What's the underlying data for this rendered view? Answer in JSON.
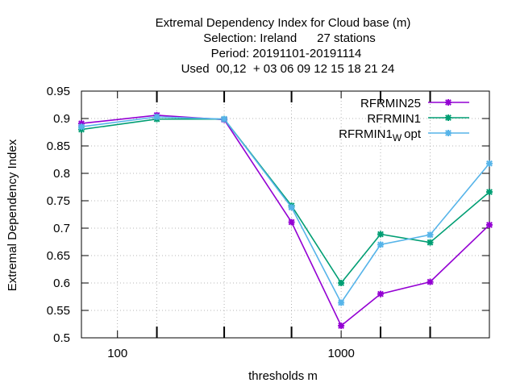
{
  "chart_data": {
    "type": "line",
    "title_lines": [
      "Extremal Dependency Index  for Cloud base (m)",
      "Selection: Ireland      27 stations",
      "Period: 20191101-20191114",
      "Used  00,12  + 03 06 09 12 15 18 21 24"
    ],
    "xlabel": "thresholds m",
    "ylabel": "Extremal Dependency Index",
    "x_scale": "log",
    "xlim": [
      69,
      4600
    ],
    "ylim": [
      0.5,
      0.95
    ],
    "x_ticks": [
      100,
      1000
    ],
    "x_tick_labels": [
      "100",
      "1000"
    ],
    "x_minor_ticks": [
      150,
      300,
      600,
      1500,
      2500
    ],
    "y_ticks": [
      0.5,
      0.55,
      0.6,
      0.65,
      0.7,
      0.75,
      0.8,
      0.85,
      0.9,
      0.95
    ],
    "y_tick_labels": [
      "0.5",
      "0.55",
      "0.6",
      "0.65",
      "0.7",
      "0.75",
      "0.8",
      "0.85",
      "0.9",
      "0.95"
    ],
    "grid": true,
    "legend_position": "top-right",
    "x": [
      69,
      150,
      300,
      600,
      1000,
      1500,
      2500,
      4600
    ],
    "series": [
      {
        "name": "RFRMIN25",
        "color": "#9400d3",
        "values": [
          0.891,
          0.906,
          0.898,
          0.711,
          0.522,
          0.58,
          0.602,
          0.706
        ]
      },
      {
        "name": "RFRMIN1",
        "color": "#009e73",
        "values": [
          0.88,
          0.899,
          0.899,
          0.741,
          0.6,
          0.689,
          0.674,
          0.766
        ]
      },
      {
        "name": "RFRMIN1",
        "name_subscript": "W",
        "name_suffix": "opt",
        "color": "#56b4e9",
        "values": [
          0.885,
          0.903,
          0.899,
          0.738,
          0.564,
          0.67,
          0.688,
          0.818
        ]
      }
    ]
  }
}
